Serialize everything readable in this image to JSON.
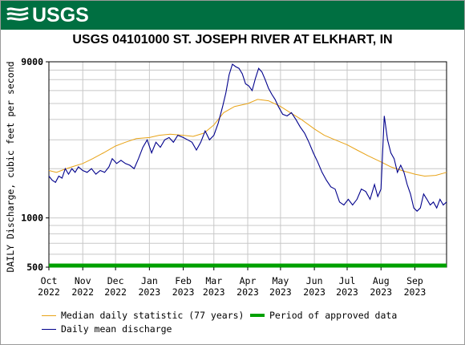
{
  "banner": {
    "logo_text": "USGS",
    "logo_mark_icon": "usgs-wave-logo-icon",
    "color": "#006f41"
  },
  "chart_data": {
    "type": "line",
    "title": "USGS 04101000 ST. JOSEPH RIVER AT ELKHART, IN",
    "ylabel": "DAILY Discharge, cubic feet per second",
    "xlabel": "",
    "yscale": "log",
    "ylim": [
      500,
      9000
    ],
    "yticks": [
      500,
      1000,
      9000
    ],
    "xlim": [
      "2022-10-01",
      "2023-09-30"
    ],
    "xticks": [
      {
        "date": "2022-10-01",
        "label": [
          "Oct",
          "2022"
        ]
      },
      {
        "date": "2022-11-01",
        "label": [
          "Nov",
          "2022"
        ]
      },
      {
        "date": "2022-12-01",
        "label": [
          "Dec",
          "2022"
        ]
      },
      {
        "date": "2023-01-01",
        "label": [
          "Jan",
          "2023"
        ]
      },
      {
        "date": "2023-02-01",
        "label": [
          "Feb",
          "2023"
        ]
      },
      {
        "date": "2023-03-01",
        "label": [
          "Mar",
          "2023"
        ]
      },
      {
        "date": "2023-04-01",
        "label": [
          "Apr",
          "2023"
        ]
      },
      {
        "date": "2023-05-01",
        "label": [
          "May",
          "2023"
        ]
      },
      {
        "date": "2023-06-01",
        "label": [
          "Jun",
          "2023"
        ]
      },
      {
        "date": "2023-07-01",
        "label": [
          "Jul",
          "2023"
        ]
      },
      {
        "date": "2023-08-01",
        "label": [
          "Aug",
          "2023"
        ]
      },
      {
        "date": "2023-09-01",
        "label": [
          "Sep",
          "2023"
        ]
      }
    ],
    "grid": true,
    "legend_position": "bottom",
    "series": [
      {
        "name": "Median daily statistic (77 years)",
        "color": "#e8a317",
        "points": [
          [
            "2022-10-01",
            1950
          ],
          [
            "2022-10-08",
            1900
          ],
          [
            "2022-10-15",
            1980
          ],
          [
            "2022-10-22",
            2050
          ],
          [
            "2022-11-01",
            2150
          ],
          [
            "2022-11-10",
            2300
          ],
          [
            "2022-11-20",
            2500
          ],
          [
            "2022-12-01",
            2750
          ],
          [
            "2022-12-10",
            2900
          ],
          [
            "2022-12-20",
            3050
          ],
          [
            "2023-01-01",
            3100
          ],
          [
            "2023-01-10",
            3200
          ],
          [
            "2023-01-20",
            3250
          ],
          [
            "2023-02-01",
            3200
          ],
          [
            "2023-02-10",
            3150
          ],
          [
            "2023-02-20",
            3300
          ],
          [
            "2023-03-01",
            3700
          ],
          [
            "2023-03-10",
            4400
          ],
          [
            "2023-03-20",
            4800
          ],
          [
            "2023-04-01",
            5000
          ],
          [
            "2023-04-10",
            5300
          ],
          [
            "2023-04-20",
            5200
          ],
          [
            "2023-05-01",
            4800
          ],
          [
            "2023-05-10",
            4400
          ],
          [
            "2023-05-20",
            4000
          ],
          [
            "2023-06-01",
            3500
          ],
          [
            "2023-06-10",
            3200
          ],
          [
            "2023-06-20",
            3000
          ],
          [
            "2023-07-01",
            2800
          ],
          [
            "2023-07-10",
            2600
          ],
          [
            "2023-07-20",
            2400
          ],
          [
            "2023-08-01",
            2200
          ],
          [
            "2023-08-10",
            2050
          ],
          [
            "2023-08-20",
            1950
          ],
          [
            "2023-09-01",
            1850
          ],
          [
            "2023-09-10",
            1800
          ],
          [
            "2023-09-20",
            1820
          ],
          [
            "2023-09-30",
            1900
          ]
        ]
      },
      {
        "name": "Daily mean discharge",
        "color": "#00008b",
        "points": [
          [
            "2022-10-01",
            1800
          ],
          [
            "2022-10-04",
            1700
          ],
          [
            "2022-10-07",
            1650
          ],
          [
            "2022-10-10",
            1800
          ],
          [
            "2022-10-13",
            1750
          ],
          [
            "2022-10-16",
            2000
          ],
          [
            "2022-10-19",
            1850
          ],
          [
            "2022-10-22",
            2000
          ],
          [
            "2022-10-25",
            1900
          ],
          [
            "2022-10-28",
            2050
          ],
          [
            "2022-11-01",
            1950
          ],
          [
            "2022-11-05",
            1900
          ],
          [
            "2022-11-09",
            2000
          ],
          [
            "2022-11-13",
            1850
          ],
          [
            "2022-11-17",
            1950
          ],
          [
            "2022-11-21",
            1900
          ],
          [
            "2022-11-25",
            2050
          ],
          [
            "2022-11-28",
            2300
          ],
          [
            "2022-12-02",
            2150
          ],
          [
            "2022-12-06",
            2250
          ],
          [
            "2022-12-10",
            2150
          ],
          [
            "2022-12-14",
            2100
          ],
          [
            "2022-12-18",
            2000
          ],
          [
            "2022-12-22",
            2300
          ],
          [
            "2022-12-26",
            2700
          ],
          [
            "2022-12-30",
            3000
          ],
          [
            "2023-01-03",
            2500
          ],
          [
            "2023-01-07",
            2900
          ],
          [
            "2023-01-11",
            2700
          ],
          [
            "2023-01-15",
            3000
          ],
          [
            "2023-01-19",
            3100
          ],
          [
            "2023-01-23",
            2900
          ],
          [
            "2023-01-27",
            3200
          ],
          [
            "2023-02-01",
            3100
          ],
          [
            "2023-02-05",
            3000
          ],
          [
            "2023-02-09",
            2900
          ],
          [
            "2023-02-13",
            2600
          ],
          [
            "2023-02-17",
            2900
          ],
          [
            "2023-02-21",
            3400
          ],
          [
            "2023-02-25",
            3000
          ],
          [
            "2023-03-01",
            3200
          ],
          [
            "2023-03-05",
            3800
          ],
          [
            "2023-03-09",
            4800
          ],
          [
            "2023-03-12",
            5800
          ],
          [
            "2023-03-15",
            7500
          ],
          [
            "2023-03-18",
            8700
          ],
          [
            "2023-03-21",
            8400
          ],
          [
            "2023-03-24",
            8200
          ],
          [
            "2023-03-27",
            7600
          ],
          [
            "2023-03-30",
            6600
          ],
          [
            "2023-04-02",
            6400
          ],
          [
            "2023-04-05",
            6000
          ],
          [
            "2023-04-08",
            7100
          ],
          [
            "2023-04-11",
            8200
          ],
          [
            "2023-04-14",
            7800
          ],
          [
            "2023-04-17",
            7000
          ],
          [
            "2023-04-20",
            6200
          ],
          [
            "2023-04-23",
            5700
          ],
          [
            "2023-04-26",
            5300
          ],
          [
            "2023-04-29",
            4800
          ],
          [
            "2023-05-03",
            4300
          ],
          [
            "2023-05-07",
            4200
          ],
          [
            "2023-05-11",
            4400
          ],
          [
            "2023-05-15",
            4000
          ],
          [
            "2023-05-19",
            3600
          ],
          [
            "2023-05-23",
            3300
          ],
          [
            "2023-05-27",
            2900
          ],
          [
            "2023-05-31",
            2500
          ],
          [
            "2023-06-04",
            2200
          ],
          [
            "2023-06-08",
            1900
          ],
          [
            "2023-06-12",
            1700
          ],
          [
            "2023-06-16",
            1550
          ],
          [
            "2023-06-20",
            1500
          ],
          [
            "2023-06-24",
            1250
          ],
          [
            "2023-06-28",
            1200
          ],
          [
            "2023-07-02",
            1300
          ],
          [
            "2023-07-06",
            1200
          ],
          [
            "2023-07-10",
            1300
          ],
          [
            "2023-07-14",
            1500
          ],
          [
            "2023-07-18",
            1450
          ],
          [
            "2023-07-22",
            1300
          ],
          [
            "2023-07-26",
            1600
          ],
          [
            "2023-07-29",
            1350
          ],
          [
            "2023-08-01",
            1500
          ],
          [
            "2023-08-04",
            4200
          ],
          [
            "2023-08-07",
            3000
          ],
          [
            "2023-08-10",
            2500
          ],
          [
            "2023-08-13",
            2300
          ],
          [
            "2023-08-16",
            1900
          ],
          [
            "2023-08-19",
            2100
          ],
          [
            "2023-08-22",
            1900
          ],
          [
            "2023-08-25",
            1600
          ],
          [
            "2023-08-28",
            1400
          ],
          [
            "2023-08-31",
            1150
          ],
          [
            "2023-09-03",
            1100
          ],
          [
            "2023-09-06",
            1150
          ],
          [
            "2023-09-09",
            1400
          ],
          [
            "2023-09-12",
            1300
          ],
          [
            "2023-09-15",
            1200
          ],
          [
            "2023-09-18",
            1250
          ],
          [
            "2023-09-21",
            1150
          ],
          [
            "2023-09-24",
            1300
          ],
          [
            "2023-09-27",
            1200
          ],
          [
            "2023-09-30",
            1250
          ]
        ]
      },
      {
        "name": "Period of approved data",
        "color": "#00a000",
        "y": 500,
        "from": "2022-10-01",
        "to": "2023-09-30"
      }
    ]
  }
}
